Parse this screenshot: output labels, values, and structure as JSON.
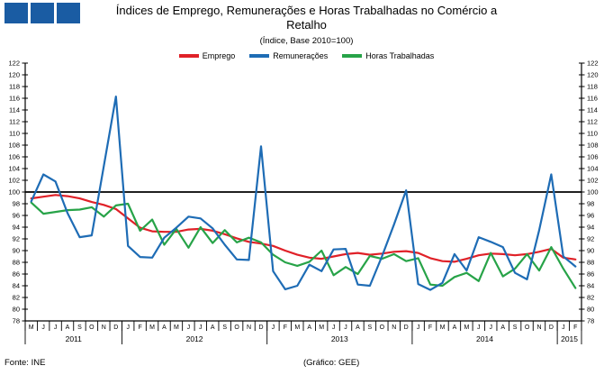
{
  "header": {
    "logo": {
      "color": "#1A5CA3",
      "square_count": 3
    },
    "title": "Índices de Emprego, Remunerações e Horas Trabalhadas no Comércio a Retalho",
    "subtitle": "(Índice, Base 2010=100)"
  },
  "footer": {
    "source": "Fonte: INE",
    "credit": "(Gráfico: GEE)"
  },
  "chart_data": {
    "type": "line",
    "title": "Índices de Emprego, Remunerações e Horas Trabalhadas no Comércio a Retalho",
    "subtitle": "(Índice, Base 2010=100)",
    "ylim": [
      78,
      122
    ],
    "ytick_step": 2,
    "baseline": 100,
    "grid": false,
    "legend_position": "top",
    "x_month_labels": [
      "M",
      "J",
      "J",
      "A",
      "S",
      "O",
      "N",
      "D",
      "J",
      "F",
      "M",
      "A",
      "M",
      "J",
      "J",
      "A",
      "S",
      "O",
      "N",
      "D",
      "J",
      "F",
      "M",
      "A",
      "M",
      "J",
      "J",
      "A",
      "S",
      "O",
      "N",
      "D",
      "J",
      "F",
      "M",
      "A",
      "M",
      "J",
      "J",
      "A",
      "S",
      "O",
      "N",
      "D",
      "J",
      "F"
    ],
    "year_groups": [
      {
        "label": "2011",
        "start": 0,
        "count": 8
      },
      {
        "label": "2012",
        "start": 8,
        "count": 12
      },
      {
        "label": "2013",
        "start": 20,
        "count": 12
      },
      {
        "label": "2014",
        "start": 32,
        "count": 12
      },
      {
        "label": "2015",
        "start": 44,
        "count": 2
      }
    ],
    "series": [
      {
        "name": "Emprego",
        "color": "#E02128",
        "values": [
          98.9,
          99.2,
          99.5,
          99.3,
          98.9,
          98.3,
          97.8,
          97.1,
          95.5,
          93.9,
          93.3,
          93.2,
          93.2,
          93.6,
          93.7,
          93.4,
          92.8,
          92.1,
          91.5,
          91.2,
          90.8,
          90.0,
          89.3,
          88.8,
          88.6,
          89.0,
          89.4,
          89.6,
          89.3,
          89.5,
          89.8,
          89.9,
          89.6,
          88.7,
          88.2,
          88.1,
          88.6,
          89.2,
          89.5,
          89.4,
          89.2,
          89.4,
          89.8,
          90.3,
          88.8,
          88.5
        ]
      },
      {
        "name": "Remunerações",
        "color": "#1E6CB5",
        "values": [
          98.4,
          103.0,
          101.8,
          96.4,
          92.3,
          92.6,
          104.4,
          116.3,
          90.8,
          88.9,
          88.8,
          92.2,
          93.9,
          95.8,
          95.5,
          93.8,
          91.0,
          88.5,
          88.4,
          107.8,
          86.5,
          83.4,
          84.0,
          87.6,
          86.5,
          90.2,
          90.3,
          84.2,
          84.0,
          89.0,
          94.5,
          100.3,
          84.3,
          83.3,
          84.5,
          89.4,
          86.6,
          92.3,
          91.5,
          90.6,
          86.2,
          85.1,
          93.5,
          103.0,
          89.0,
          87.3
        ]
      },
      {
        "name": "Horas Trabalhadas",
        "color": "#27A348",
        "values": [
          98.2,
          96.3,
          96.6,
          96.9,
          97.0,
          97.4,
          95.8,
          97.7,
          98.0,
          93.4,
          95.3,
          91.0,
          93.7,
          90.5,
          94.0,
          91.3,
          93.5,
          91.4,
          92.2,
          91.4,
          89.3,
          88.0,
          87.4,
          88.1,
          90.0,
          85.8,
          87.2,
          86.0,
          89.1,
          88.6,
          89.4,
          88.2,
          88.7,
          84.2,
          84.0,
          85.5,
          86.2,
          84.8,
          89.6,
          85.6,
          86.9,
          89.4,
          86.6,
          90.6,
          86.9,
          83.6
        ]
      }
    ]
  }
}
